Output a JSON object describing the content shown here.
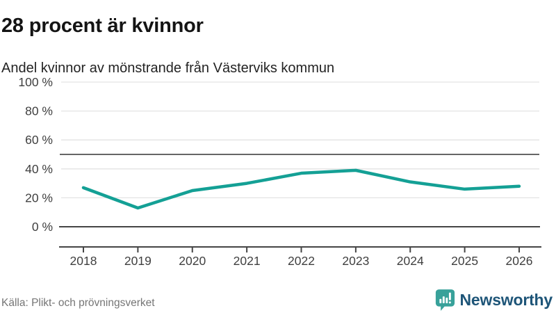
{
  "header": {
    "title": "28 procent är kvinnor",
    "subtitle": "Andel kvinnor av mönstrande från Västerviks kommun"
  },
  "chart_data": {
    "type": "line",
    "title": "28 procent är kvinnor",
    "subtitle": "Andel kvinnor av mönstrande från Västerviks kommun",
    "x": [
      2018,
      2019,
      2020,
      2021,
      2022,
      2023,
      2024,
      2025,
      2026
    ],
    "series": [
      {
        "name": "Andel kvinnor av mönstrande",
        "values": [
          27,
          13,
          25,
          30,
          37,
          39,
          31,
          26,
          28
        ]
      }
    ],
    "xlabel": "",
    "ylabel": "",
    "ylim": [
      0,
      100
    ],
    "yticks": [
      0,
      20,
      40,
      60,
      80,
      100
    ],
    "ytick_labels": [
      "0 %",
      "20 %",
      "40 %",
      "60 %",
      "80 %",
      "100 %"
    ],
    "reference_line": 50,
    "grid": true,
    "legend": "none",
    "colors": {
      "line": "#14a095",
      "gridline": "#e3e3e3",
      "reference_line": "#666666",
      "zero_line": "#454545",
      "axis": "#454545",
      "tick_text": "#3f3f3f"
    }
  },
  "footer": {
    "source": "Källa: Plikt- och prövningsverket",
    "brand": "Newsworthy",
    "brand_icon": "bar-chart-speech-bubble-icon",
    "brand_colors": {
      "icon": "#38a19a",
      "text": "#1e5578"
    }
  }
}
